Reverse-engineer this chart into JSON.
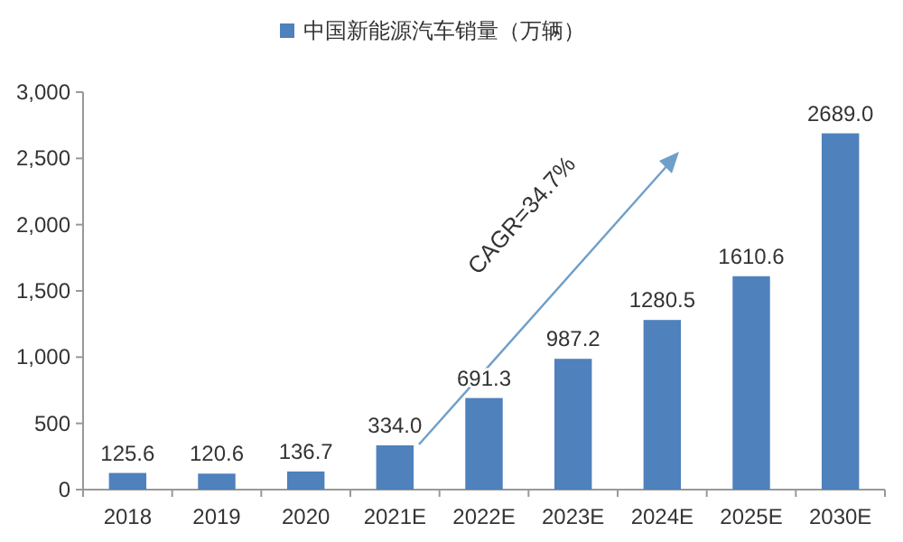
{
  "chart_data": {
    "type": "bar",
    "categories": [
      "2018",
      "2019",
      "2020",
      "2021E",
      "2022E",
      "2023E",
      "2024E",
      "2025E",
      "2030E"
    ],
    "series": [
      {
        "name": "中国新能源汽车销量（万辆）",
        "color": "#4f81bd",
        "values": [
          125.6,
          120.6,
          136.7,
          334.0,
          691.3,
          987.2,
          1280.5,
          1610.6,
          2689.0
        ]
      }
    ],
    "value_labels": [
      "125.6",
      "120.6",
      "136.7",
      "334.0",
      "691.3",
      "987.2",
      "1280.5",
      "1610.6",
      "2689.0"
    ],
    "ylim": [
      0,
      3000
    ],
    "yticks": [
      0,
      500,
      {
        "value": 1000,
        "label": "1,000"
      },
      {
        "value": 1500,
        "label": "1,500"
      },
      {
        "value": 2000,
        "label": "2,000"
      },
      {
        "value": 2500,
        "label": "2,500"
      },
      {
        "value": 3000,
        "label": "3,000"
      }
    ],
    "annotations": [
      "CAGR=34.7%"
    ],
    "legend": "top",
    "grid": false
  }
}
